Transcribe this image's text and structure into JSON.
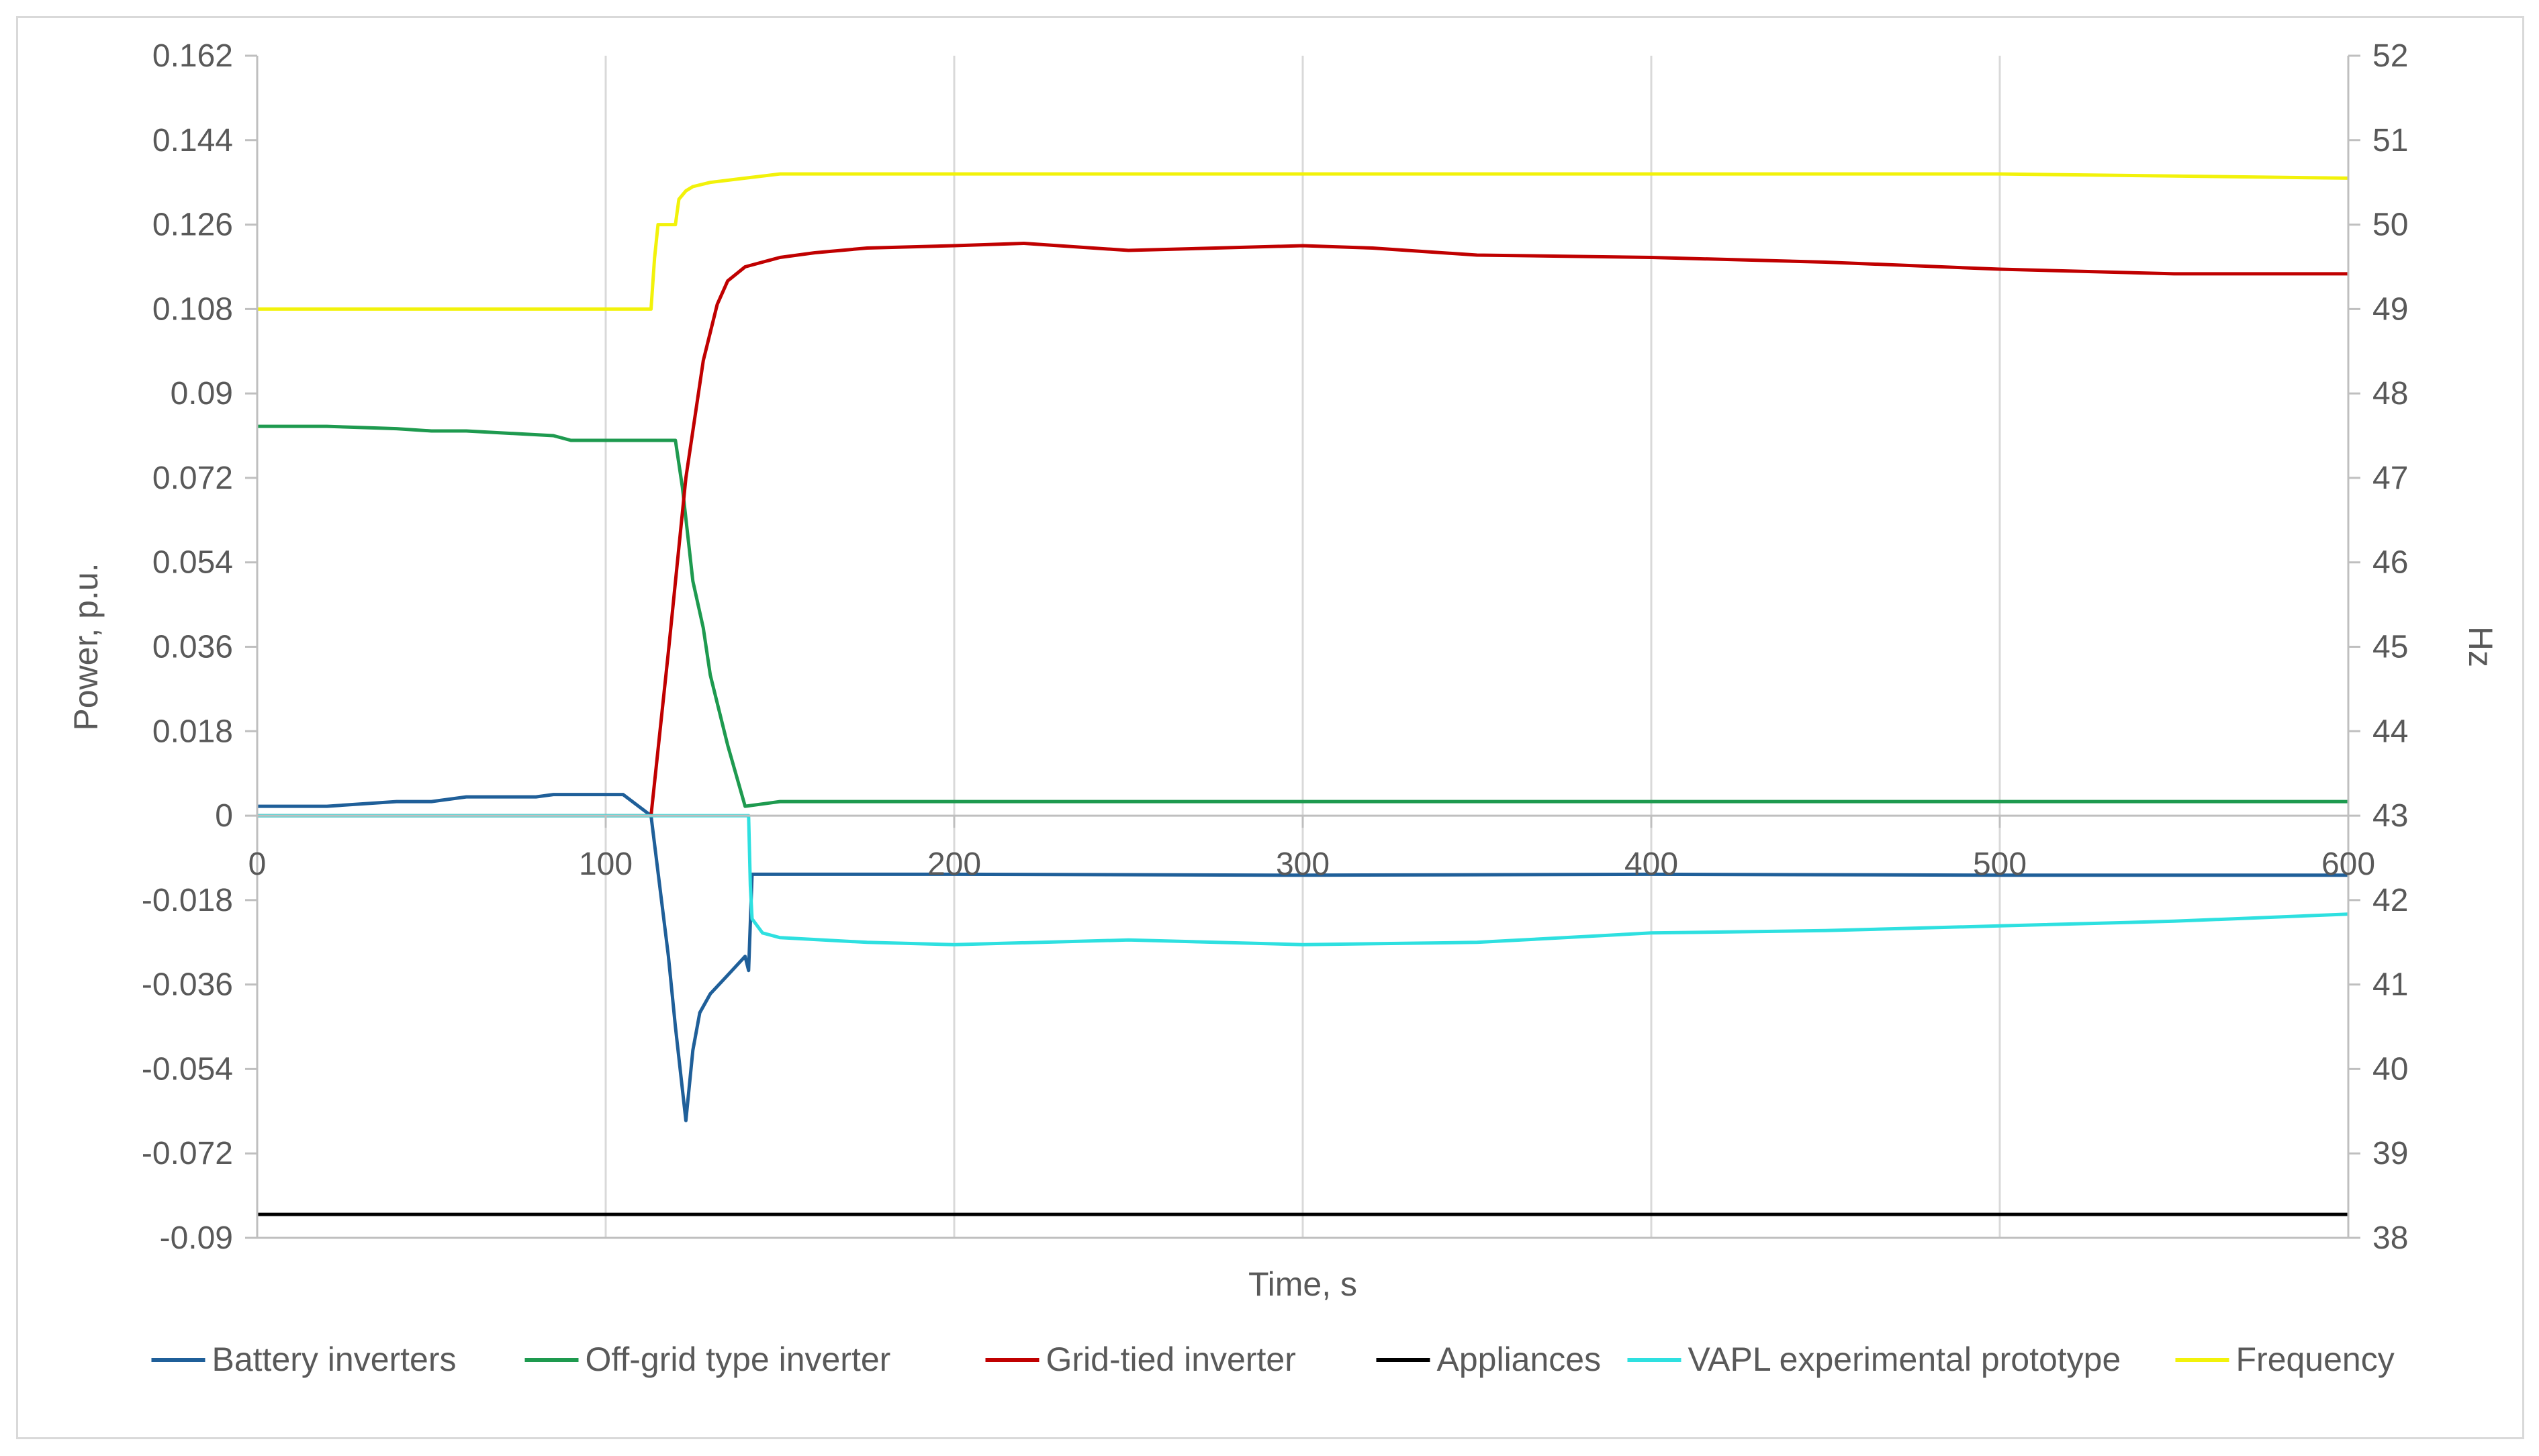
{
  "chart_data": {
    "type": "line",
    "title": "",
    "xlabel": "Time, s",
    "ylabel": "Power, p.u.",
    "y2label": "Hz",
    "xlim": [
      0,
      600
    ],
    "ylim": [
      -0.09,
      0.162
    ],
    "y2lim": [
      38,
      52
    ],
    "xticks": [
      "0",
      "100",
      "200",
      "300",
      "400",
      "500",
      "600"
    ],
    "yticks": [
      "0.162",
      "0.144",
      "0.126",
      "0.108",
      "0.09",
      "0.072",
      "0.054",
      "0.036",
      "0.018",
      "0",
      "-0.018",
      "-0.036",
      "-0.054",
      "-0.072",
      "-0.09"
    ],
    "y2ticks": [
      "52",
      "51",
      "50",
      "49",
      "48",
      "47",
      "46",
      "45",
      "44",
      "43",
      "42",
      "41",
      "40",
      "39",
      "38"
    ],
    "grid": "vertical",
    "legend_position": "bottom",
    "series": [
      {
        "name": "Battery inverters",
        "axis": "left",
        "color": "#1f5f99",
        "x": [
          0,
          20,
          40,
          50,
          60,
          80,
          85,
          90,
          105,
          113,
          118,
          120,
          123,
          125,
          127,
          130,
          135,
          140,
          141,
          142,
          150,
          200,
          300,
          400,
          500,
          600
        ],
        "y": [
          0.002,
          0.002,
          0.003,
          0.003,
          0.004,
          0.004,
          0.0045,
          0.0045,
          0.0045,
          0.0,
          -0.03,
          -0.045,
          -0.065,
          -0.05,
          -0.042,
          -0.038,
          -0.034,
          -0.03,
          -0.033,
          -0.0125,
          -0.0125,
          -0.0125,
          -0.0127,
          -0.0125,
          -0.0127,
          -0.0127
        ]
      },
      {
        "name": "Off-grid type inverter",
        "axis": "left",
        "color": "#1e9a4f",
        "x": [
          0,
          20,
          40,
          50,
          60,
          85,
          90,
          120,
          122,
          125,
          128,
          130,
          135,
          140,
          150,
          200,
          300,
          400,
          500,
          600
        ],
        "y": [
          0.083,
          0.083,
          0.0825,
          0.082,
          0.082,
          0.081,
          0.08,
          0.08,
          0.07,
          0.05,
          0.04,
          0.03,
          0.015,
          0.002,
          0.003,
          0.003,
          0.003,
          0.003,
          0.003,
          0.003
        ]
      },
      {
        "name": "Grid-tied inverter",
        "axis": "left",
        "color": "#c00000",
        "x": [
          0,
          112,
          113,
          118,
          123,
          128,
          132,
          135,
          140,
          150,
          160,
          175,
          200,
          220,
          250,
          300,
          320,
          350,
          400,
          450,
          500,
          550,
          600
        ],
        "y": [
          0,
          0,
          0.0,
          0.035,
          0.072,
          0.097,
          0.109,
          0.114,
          0.117,
          0.119,
          0.12,
          0.121,
          0.1215,
          0.122,
          0.1205,
          0.1215,
          0.121,
          0.1195,
          0.119,
          0.118,
          0.1165,
          0.1155,
          0.1155
        ]
      },
      {
        "name": "Appliances",
        "axis": "left",
        "color": "#000000",
        "x": [
          0,
          100,
          200,
          300,
          400,
          500,
          600
        ],
        "y": [
          -0.085,
          -0.085,
          -0.085,
          -0.085,
          -0.085,
          -0.085,
          -0.085
        ]
      },
      {
        "name": "VAPL experimental prototype",
        "axis": "left",
        "color": "#2ee0e0",
        "x": [
          0,
          50,
          100,
          141,
          141.5,
          142,
          145,
          150,
          175,
          200,
          250,
          300,
          350,
          400,
          450,
          500,
          550,
          600
        ],
        "y": [
          0,
          0,
          0,
          0,
          -0.015,
          -0.022,
          -0.025,
          -0.026,
          -0.027,
          -0.0275,
          -0.0265,
          -0.0275,
          -0.027,
          -0.025,
          -0.0245,
          -0.0235,
          -0.0225,
          -0.021
        ]
      },
      {
        "name": "Frequency",
        "axis": "right",
        "color": "#f2f20a",
        "x": [
          0,
          100,
          112,
          113,
          114,
          115,
          120,
          121,
          123,
          125,
          130,
          140,
          150,
          200,
          300,
          400,
          500,
          600
        ],
        "y": [
          49.0,
          49.0,
          49.0,
          49.0,
          49.6,
          50.0,
          50.0,
          50.3,
          50.4,
          50.45,
          50.5,
          50.55,
          50.6,
          50.6,
          50.6,
          50.6,
          50.6,
          50.55
        ]
      }
    ]
  }
}
